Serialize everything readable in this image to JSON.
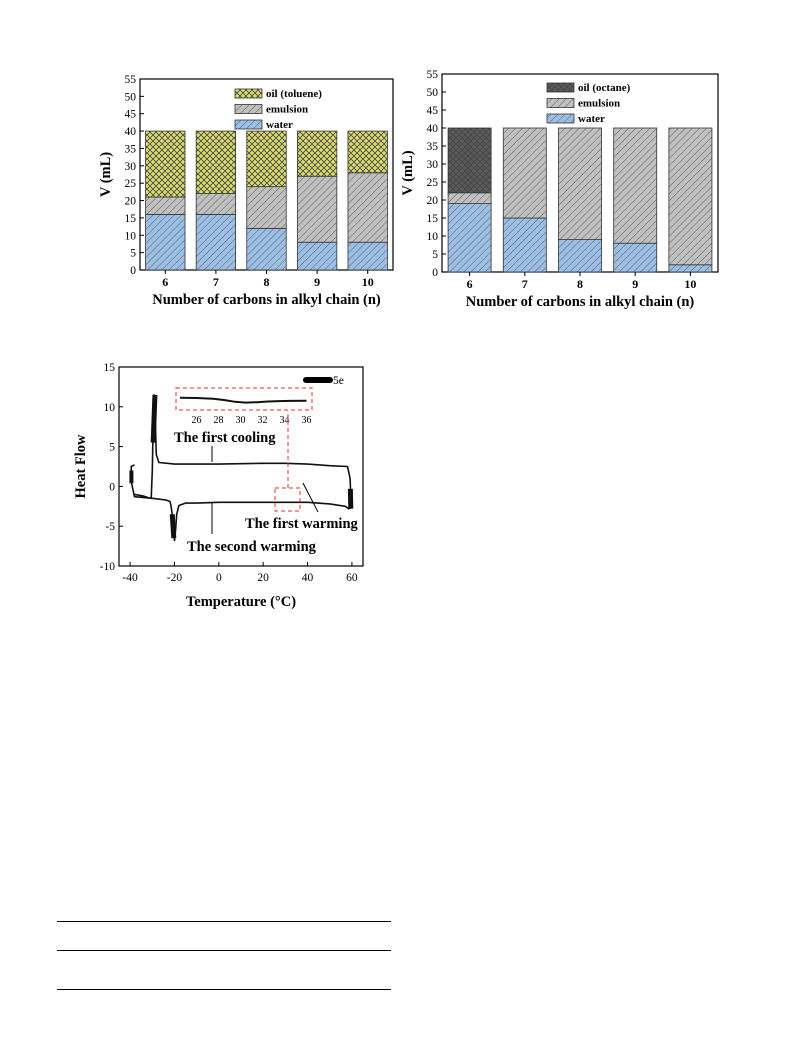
{
  "chart_data": [
    {
      "type": "bar",
      "stacked": true,
      "xlabel": "Number of carbons in alkyl chain (n)",
      "ylabel": "V (mL)",
      "ylim": [
        0,
        55
      ],
      "yticks": [
        0,
        5,
        10,
        15,
        20,
        25,
        30,
        35,
        40,
        45,
        50,
        55
      ],
      "categories": [
        "6",
        "7",
        "8",
        "9",
        "10"
      ],
      "series": [
        {
          "name": "water",
          "values": [
            16,
            16,
            12,
            8,
            8
          ],
          "color": "#9cbfe6",
          "pattern": "hatch"
        },
        {
          "name": "emulsion",
          "values": [
            5,
            6,
            12,
            19,
            20
          ],
          "color": "#c0c0c0",
          "pattern": "hatch"
        },
        {
          "name": "oil (toluene)",
          "values": [
            19,
            18,
            16,
            13,
            12
          ],
          "color": "#dcdc6e",
          "pattern": "crosshatch"
        }
      ],
      "legend_order": [
        "oil (toluene)",
        "emulsion",
        "water"
      ],
      "legend": "top-center"
    },
    {
      "type": "bar",
      "stacked": true,
      "xlabel": "Number of carbons in alkyl chain (n)",
      "ylabel": "V (mL)",
      "ylim": [
        0,
        55
      ],
      "yticks": [
        0,
        5,
        10,
        15,
        20,
        25,
        30,
        35,
        40,
        45,
        50,
        55
      ],
      "categories": [
        "6",
        "7",
        "8",
        "9",
        "10"
      ],
      "series": [
        {
          "name": "water",
          "values": [
            19,
            15,
            9,
            8,
            2
          ],
          "color": "#9cbfe6",
          "pattern": "hatch"
        },
        {
          "name": "emulsion",
          "values": [
            3,
            25,
            31,
            32,
            38
          ],
          "color": "#c0c0c0",
          "pattern": "hatch"
        },
        {
          "name": "oil (octane)",
          "values": [
            18,
            0,
            0,
            0,
            0
          ],
          "color": "#5a5a5a",
          "pattern": "crosshatch"
        }
      ],
      "legend_order": [
        "oil (octane)",
        "emulsion",
        "water"
      ],
      "legend": "top-center"
    },
    {
      "type": "line",
      "xlabel": "Temperature (°C)",
      "ylabel": "Heat Flow",
      "xlim": [
        -45,
        65
      ],
      "ylim": [
        -10,
        15
      ],
      "xticks": [
        -40,
        -20,
        0,
        20,
        40,
        60
      ],
      "yticks": [
        -10,
        -5,
        0,
        5,
        10,
        15
      ],
      "series": [
        {
          "name": "5e",
          "x": [
            -38,
            -36,
            -34,
            -32,
            -30.5,
            -30,
            -29.7,
            -29.5,
            -29.2,
            -28.6,
            -28.2,
            -27,
            -20,
            0,
            20,
            30,
            40,
            50,
            58,
            59.2,
            59.3,
            59.5,
            59.5,
            58.5,
            57,
            50,
            40,
            30,
            20,
            10,
            0,
            -10,
            -15,
            -18,
            -19,
            -19.5,
            -20,
            -20.5,
            -21,
            -21.5,
            -22,
            -24,
            -30,
            -38,
            -39.4,
            -39.5,
            -38
          ],
          "y": [
            -1,
            -1.1,
            -1.2,
            -1.4,
            -1.5,
            2,
            6,
            10,
            11.5,
            8,
            4,
            3,
            2.8,
            2.8,
            2.9,
            2.9,
            2.8,
            2.6,
            2.5,
            1,
            0,
            -1.5,
            -2.7,
            -2.8,
            -2.5,
            -2.2,
            -2.0,
            -2.0,
            -2.0,
            -2.0,
            -2.0,
            -2.1,
            -2.1,
            -2.4,
            -3.5,
            -5.5,
            -6.8,
            -5,
            -3.5,
            -2.5,
            -1.9,
            -1.7,
            -1.5,
            -1.3,
            0.5,
            2.5,
            2.7
          ]
        }
      ],
      "annotations": [
        "The first cooling",
        "The first warming",
        "The second warming"
      ],
      "inset": {
        "xlim": [
          24.5,
          36.5
        ],
        "xticks": [
          26,
          28,
          30,
          32,
          34,
          36
        ],
        "x": [
          24.5,
          26,
          27.5,
          28.5,
          29.5,
          30.5,
          31.5,
          32.5,
          33.5,
          34.5,
          36
        ],
        "y": [
          0.6,
          0.59,
          0.56,
          0.5,
          0.42,
          0.38,
          0.4,
          0.43,
          0.45,
          0.46,
          0.47
        ]
      },
      "legend": "top-right"
    }
  ]
}
